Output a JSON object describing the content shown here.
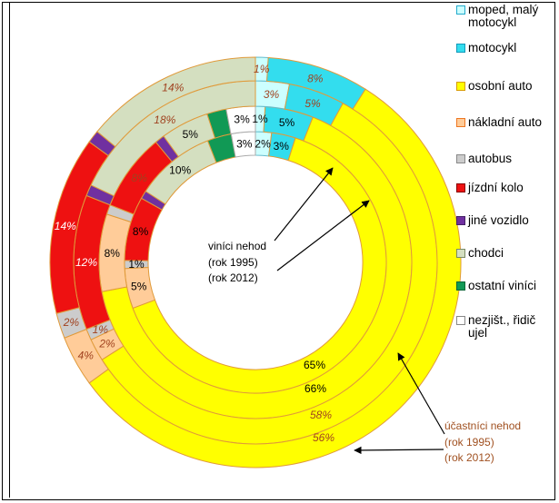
{
  "chart_data": {
    "type": "donut",
    "categories": [
      "moped, malý motocykl",
      "motocykl",
      "osobní auto",
      "nákladní auto",
      "autobus",
      "jízdní kolo",
      "jiné vozidlo",
      "chodci",
      "ostatní viníci",
      "nezjišt., řidič ujel"
    ],
    "colors": [
      "#ccffff",
      "#33ddee",
      "#ffff00",
      "#ffcc99",
      "#cccccc",
      "#ee1111",
      "#7030a0",
      "#d4dfc0",
      "#119955",
      "#ffffff"
    ],
    "rings": [
      {
        "values": [
          2,
          3,
          65,
          5,
          1,
          8,
          1,
          10,
          3,
          3
        ],
        "labels": [
          "2%",
          "3%",
          "65%",
          "5%",
          "1%",
          "8%",
          "",
          "10%",
          "",
          "3%"
        ],
        "label_style": "normal"
      },
      {
        "values": [
          1,
          5,
          66,
          8,
          1,
          8,
          1,
          5,
          2,
          3
        ],
        "labels": [
          "1%",
          "5%",
          "66%",
          "8%",
          "",
          "8%",
          "",
          "5%",
          "",
          "3%"
        ],
        "label_style": "mixed"
      },
      {
        "values": [
          3,
          5,
          58,
          2,
          1,
          12,
          1,
          18,
          0,
          0
        ],
        "labels": [
          "3%",
          "5%",
          "58%",
          "2%",
          "1%",
          "12%",
          "",
          "18%",
          "",
          ""
        ],
        "label_style": "italic"
      },
      {
        "values": [
          1,
          8,
          56,
          4,
          2,
          14,
          1,
          14,
          0,
          0
        ],
        "labels": [
          "1%",
          "8%",
          "56%",
          "4%",
          "2%",
          "14%",
          "",
          "14%",
          "",
          ""
        ],
        "label_style": "italic"
      }
    ],
    "annotations": {
      "inner": {
        "title": "viníci nehod",
        "years": [
          "(rok 1995)",
          "(rok 2012)"
        ]
      },
      "outer": {
        "title": "účastníci nehod",
        "years": [
          "(rok 1995)",
          "(rok 2012)"
        ]
      }
    }
  }
}
